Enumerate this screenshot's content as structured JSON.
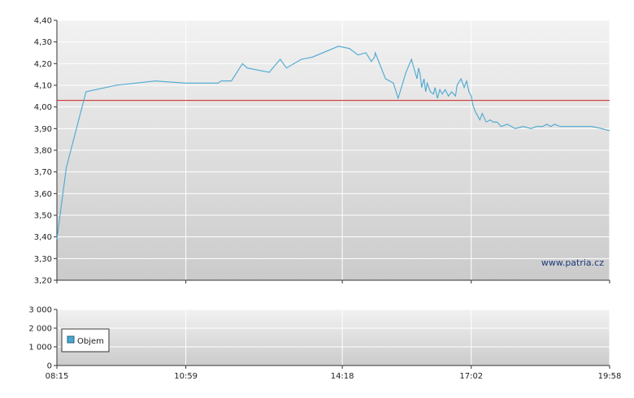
{
  "watermark": "www.patria.cz",
  "chart_data": [
    {
      "type": "line",
      "ylim": [
        3.2,
        4.4
      ],
      "y_ticks": [
        "4,40",
        "4,30",
        "4,20",
        "4,10",
        "4,00",
        "3,90",
        "3,80",
        "3,70",
        "3,60",
        "3,50",
        "3,40",
        "3,30",
        "3,20"
      ],
      "x_ticks": [
        "08:15",
        "10:59",
        "14:18",
        "17:02",
        "19:58"
      ],
      "reference_line": 4.03,
      "colors": {
        "line": "#4aa8d0",
        "reference": "#cc2222"
      },
      "grid": true,
      "series": [
        {
          "x": [
            "08:15",
            "08:27",
            "08:52",
            "09:30",
            "10:20",
            "10:59",
            "11:40",
            "11:44",
            "11:57",
            "12:11",
            "12:17",
            "12:45",
            "12:59",
            "13:07",
            "13:26",
            "13:40",
            "14:13",
            "14:27",
            "14:38",
            "14:48",
            "14:55",
            "14:59",
            "15:00",
            "15:13",
            "15:23",
            "15:29",
            "15:39",
            "15:46",
            "15:53",
            "15:55",
            "15:57",
            "15:59",
            "16:02",
            "16:04",
            "16:06",
            "16:10",
            "16:14",
            "16:16",
            "16:19",
            "16:22",
            "16:25",
            "16:29",
            "16:33",
            "16:37",
            "16:42",
            "16:44",
            "16:49",
            "16:53",
            "16:56",
            "16:59",
            "17:02",
            "17:04",
            "17:07",
            "17:10",
            "17:13",
            "17:16",
            "17:21",
            "17:26",
            "17:30",
            "17:35",
            "17:40",
            "17:48",
            "17:58",
            "18:08",
            "18:18",
            "18:25",
            "18:33",
            "18:38",
            "18:43",
            "18:48",
            "18:55",
            "19:07",
            "19:12",
            "19:15",
            "19:22",
            "19:35",
            "19:48",
            "19:58"
          ],
          "y": [
            3.39,
            3.72,
            4.07,
            4.1,
            4.12,
            4.11,
            4.11,
            4.12,
            4.12,
            4.2,
            4.18,
            4.16,
            4.22,
            4.18,
            4.22,
            4.23,
            4.28,
            4.27,
            4.24,
            4.25,
            4.21,
            4.23,
            4.25,
            4.13,
            4.11,
            4.04,
            4.16,
            4.22,
            4.13,
            4.18,
            4.15,
            4.09,
            4.13,
            4.07,
            4.11,
            4.07,
            4.06,
            4.09,
            4.04,
            4.08,
            4.06,
            4.08,
            4.05,
            4.07,
            4.05,
            4.1,
            4.13,
            4.09,
            4.12,
            4.07,
            4.05,
            4.01,
            3.98,
            3.96,
            3.94,
            3.97,
            3.93,
            3.94,
            3.93,
            3.93,
            3.91,
            3.92,
            3.9,
            3.91,
            3.9,
            3.91,
            3.91,
            3.92,
            3.91,
            3.92,
            3.91,
            3.91,
            3.91,
            3.91,
            3.91,
            3.91,
            3.9,
            3.89
          ]
        }
      ]
    },
    {
      "type": "bar",
      "ylim": [
        0,
        3000
      ],
      "y_ticks": [
        "3 000",
        "2 000",
        "1 000",
        "0"
      ],
      "x_ticks": [
        "08:15",
        "10:59",
        "14:18",
        "17:02",
        "19:58"
      ],
      "legend": "Objem",
      "colors": {
        "legend_swatch": "#4aa8d0"
      },
      "grid": true,
      "series": [
        {
          "name": "Objem",
          "values": []
        }
      ]
    }
  ]
}
